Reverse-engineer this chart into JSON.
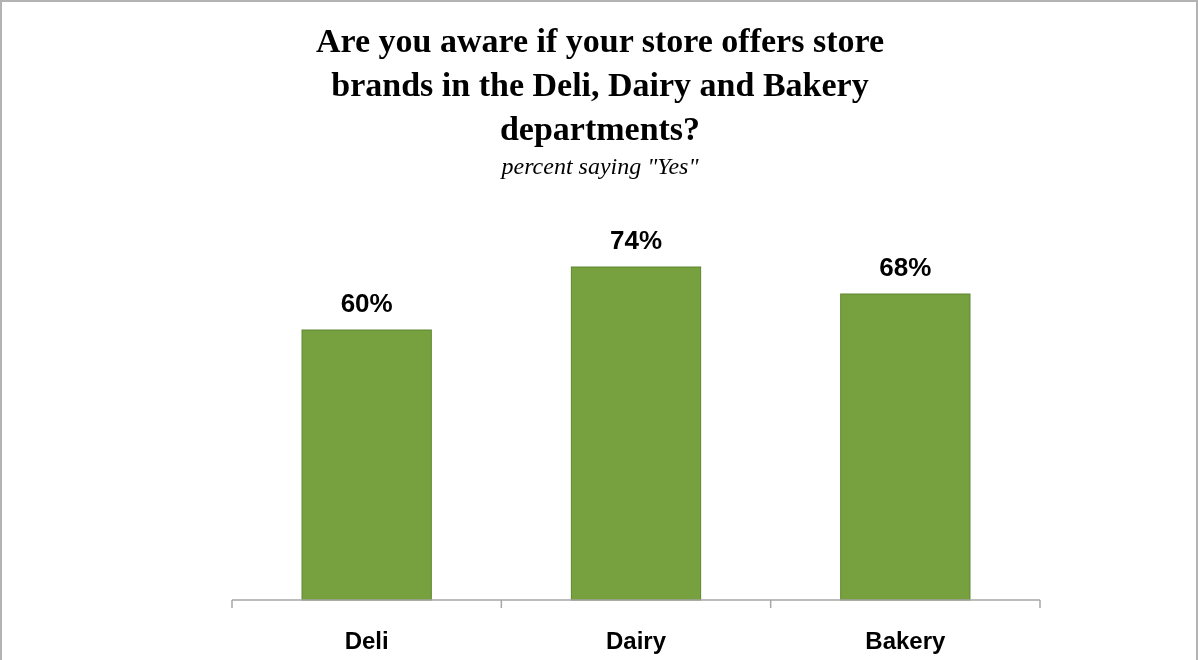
{
  "chart_data": {
    "type": "bar",
    "title": "Are you aware if your store offers store brands in the Deli, Dairy and Bakery departments?",
    "subtitle": "percent saying \"Yes\"",
    "categories": [
      "Deli",
      "Dairy",
      "Bakery"
    ],
    "values": [
      60,
      74,
      68
    ],
    "value_labels": [
      "60%",
      "74%",
      "68%"
    ],
    "color": "#77a13f"
  }
}
